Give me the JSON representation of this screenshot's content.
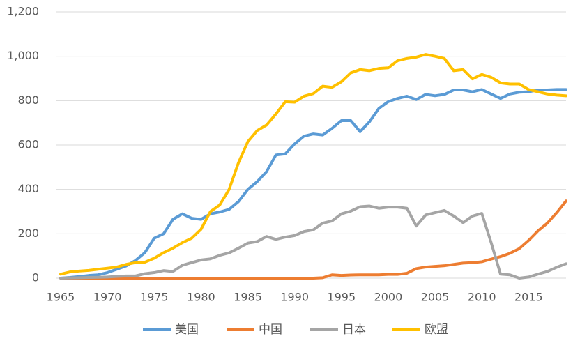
{
  "chart_data": {
    "type": "line",
    "x": [
      1965,
      1966,
      1967,
      1968,
      1969,
      1970,
      1971,
      1972,
      1973,
      1974,
      1975,
      1976,
      1977,
      1978,
      1979,
      1980,
      1981,
      1982,
      1983,
      1984,
      1985,
      1986,
      1987,
      1988,
      1989,
      1990,
      1991,
      1992,
      1993,
      1994,
      1995,
      1996,
      1997,
      1998,
      1999,
      2000,
      2001,
      2002,
      2003,
      2004,
      2005,
      2006,
      2007,
      2008,
      2009,
      2010,
      2011,
      2012,
      2013,
      2014,
      2015,
      2016,
      2017,
      2018,
      2019
    ],
    "xlim": [
      1965,
      2019
    ],
    "xticks": [
      1965,
      1970,
      1975,
      1980,
      1985,
      1990,
      1995,
      2000,
      2005,
      2010,
      2015
    ],
    "ylim": [
      0,
      1200
    ],
    "yticks": [
      0,
      200,
      400,
      600,
      800,
      {
        "value": 1000,
        "label": "1,000"
      },
      {
        "value": 1200,
        "label": "1,200"
      }
    ],
    "grid": true,
    "legend": "bottom",
    "series": [
      {
        "name": "美国",
        "color": "#5b9bd5",
        "values": [
          0,
          3,
          7,
          12,
          15,
          25,
          40,
          55,
          80,
          115,
          180,
          200,
          265,
          290,
          270,
          265,
          290,
          298,
          310,
          345,
          400,
          435,
          480,
          555,
          560,
          605,
          640,
          650,
          645,
          675,
          710,
          710,
          660,
          705,
          765,
          795,
          810,
          820,
          805,
          828,
          822,
          828,
          848,
          848,
          840,
          850,
          830,
          810,
          830,
          838,
          840,
          848,
          848,
          850,
          850
        ]
      },
      {
        "name": "中国",
        "color": "#ed7d31",
        "values": [
          0,
          0,
          0,
          0,
          0,
          0,
          0,
          0,
          0,
          0,
          0,
          0,
          0,
          0,
          0,
          0,
          0,
          0,
          0,
          0,
          0,
          0,
          0,
          0,
          0,
          0,
          0,
          0,
          2,
          15,
          12,
          14,
          15,
          15,
          15,
          17,
          17,
          22,
          43,
          50,
          53,
          56,
          62,
          68,
          70,
          74,
          86,
          97,
          112,
          133,
          170,
          213,
          248,
          295,
          348
        ]
      },
      {
        "name": "日本",
        "color": "#a5a5a5",
        "values": [
          0,
          1,
          2,
          3,
          4,
          5,
          8,
          10,
          10,
          20,
          25,
          34,
          30,
          58,
          70,
          82,
          87,
          103,
          114,
          135,
          158,
          165,
          188,
          175,
          185,
          192,
          210,
          218,
          248,
          258,
          290,
          302,
          322,
          325,
          315,
          320,
          320,
          315,
          235,
          285,
          295,
          305,
          280,
          250,
          280,
          292,
          160,
          18,
          15,
          0,
          5,
          18,
          30,
          49,
          65
        ]
      },
      {
        "name": "欧盟",
        "color": "#ffc000",
        "values": [
          18,
          28,
          32,
          35,
          40,
          45,
          50,
          62,
          70,
          72,
          90,
          115,
          135,
          160,
          180,
          220,
          300,
          330,
          400,
          520,
          615,
          665,
          690,
          740,
          795,
          793,
          820,
          832,
          865,
          860,
          885,
          925,
          940,
          935,
          945,
          948,
          980,
          990,
          996,
          1008,
          1000,
          990,
          935,
          940,
          898,
          918,
          905,
          880,
          875,
          875,
          850,
          840,
          830,
          825,
          822
        ]
      }
    ]
  }
}
